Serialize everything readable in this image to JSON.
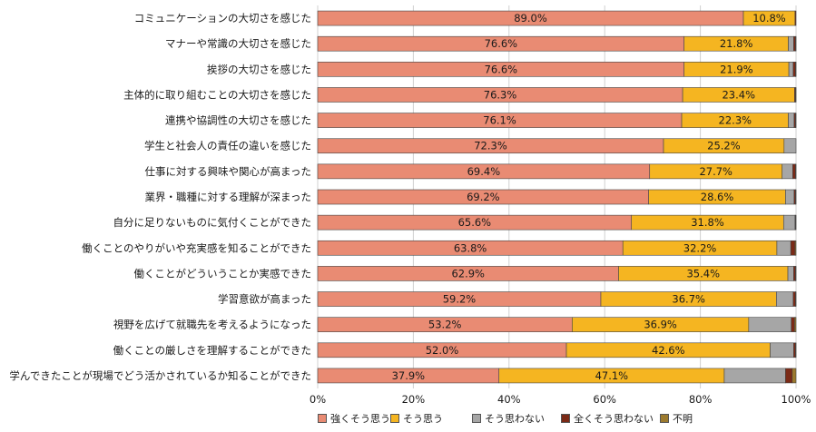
{
  "chart_data": {
    "type": "bar",
    "orientation": "horizontal",
    "stacked": true,
    "categories": [
      "コミュニケーションの大切さを感じた",
      "マナーや常識の大切さを感じた",
      "挨拶の大切さを感じた",
      "主体的に取り組むことの大切さを感じた",
      "連携や協調性の大切さを感じた",
      "学生と社会人の責任の違いを感じた",
      "仕事に対する興味や関心が高まった",
      "業界・職種に対する理解が深まった",
      "自分に足りないものに気付くことができた",
      "働くことのやりがいや充実感を知ることができた",
      "働くことがどういうことか実感できた",
      "学習意欲が高まった",
      "視野を広げて就職先を考えるようになった",
      "働くことの厳しさを理解することができた",
      "学んできたことが現場でどう活かされているか知ることができた"
    ],
    "series": [
      {
        "name": "強くそう思う",
        "color": "#e98b73",
        "values": [
          89.0,
          76.6,
          76.6,
          76.3,
          76.1,
          72.3,
          69.4,
          69.2,
          65.6,
          63.8,
          62.9,
          59.2,
          53.2,
          52.0,
          37.9
        ]
      },
      {
        "name": "そう思う",
        "color": "#f5b521",
        "values": [
          10.8,
          21.8,
          21.9,
          23.4,
          22.3,
          25.2,
          27.7,
          28.6,
          31.8,
          32.2,
          35.4,
          36.7,
          36.9,
          42.6,
          47.1
        ]
      },
      {
        "name": "そう思わない",
        "color": "#a6a6a6",
        "values": [
          0.0,
          1.1,
          0.9,
          0.0,
          1.2,
          2.5,
          2.2,
          1.8,
          2.4,
          2.9,
          1.2,
          3.5,
          8.9,
          4.9,
          12.8
        ]
      },
      {
        "name": "全くそう思わない",
        "color": "#7b2a16",
        "values": [
          0.2,
          0.4,
          0.5,
          0.2,
          0.3,
          0.0,
          0.6,
          0.3,
          0.1,
          0.9,
          0.4,
          0.5,
          0.7,
          0.4,
          1.4
        ]
      },
      {
        "name": "不明",
        "color": "#9c7a2e",
        "values": [
          0.0,
          0.1,
          0.1,
          0.1,
          0.1,
          0.0,
          0.1,
          0.1,
          0.1,
          0.2,
          0.1,
          0.1,
          0.3,
          0.1,
          0.8
        ]
      }
    ],
    "labeled_series": [
      0,
      1
    ],
    "xlim": [
      0,
      100
    ],
    "xticks": [
      "0%",
      "20%",
      "40%",
      "60%",
      "80%",
      "100%"
    ],
    "grid": true,
    "legend_position": "bottom"
  }
}
